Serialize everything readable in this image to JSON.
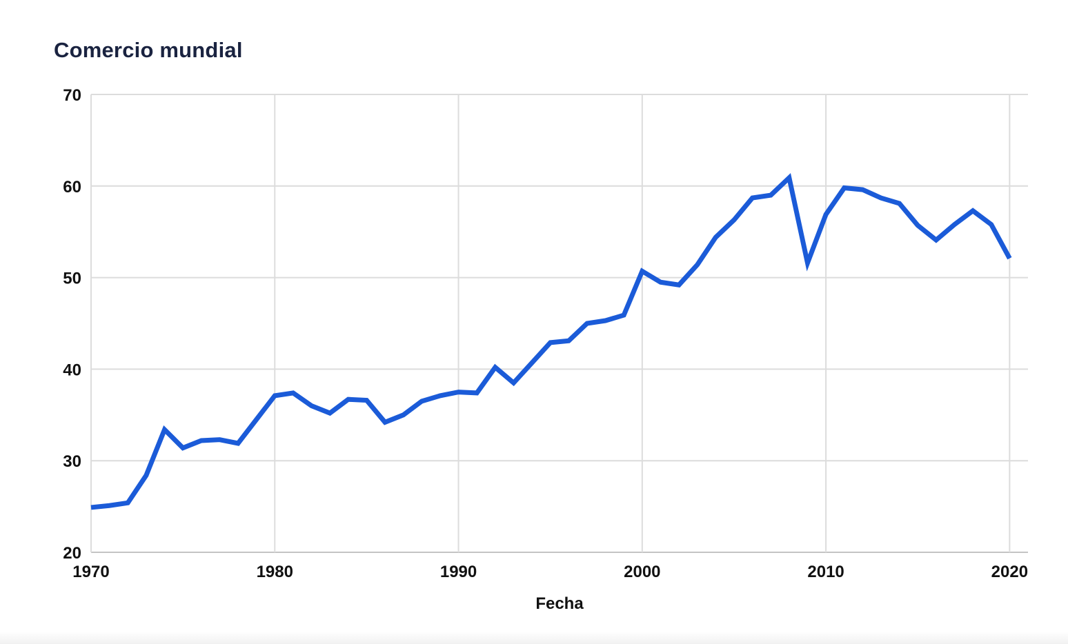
{
  "header": {
    "title": "Comercio mundial"
  },
  "chart_data": {
    "type": "line",
    "title": "Comercio mundial",
    "xlabel": "Fecha",
    "ylabel": "",
    "x": [
      1970,
      1971,
      1972,
      1973,
      1974,
      1975,
      1976,
      1977,
      1978,
      1979,
      1980,
      1981,
      1982,
      1983,
      1984,
      1985,
      1986,
      1987,
      1988,
      1989,
      1990,
      1991,
      1992,
      1993,
      1994,
      1995,
      1996,
      1997,
      1998,
      1999,
      2000,
      2001,
      2002,
      2003,
      2004,
      2005,
      2006,
      2007,
      2008,
      2009,
      2010,
      2011,
      2012,
      2013,
      2014,
      2015,
      2016,
      2017,
      2018,
      2019,
      2020
    ],
    "series": [
      {
        "name": "Comercio mundial",
        "color": "#1b5bd8",
        "values": [
          24.9,
          25.1,
          25.4,
          28.4,
          33.4,
          31.4,
          32.2,
          32.3,
          31.9,
          34.5,
          37.1,
          37.4,
          36.0,
          35.2,
          36.7,
          36.6,
          34.2,
          35.0,
          36.5,
          37.1,
          37.5,
          37.4,
          40.2,
          38.5,
          40.7,
          42.9,
          43.1,
          45.0,
          45.3,
          45.9,
          50.7,
          49.5,
          49.2,
          51.4,
          54.4,
          56.3,
          58.7,
          59.0,
          60.9,
          51.6,
          56.9,
          59.8,
          59.6,
          58.7,
          58.1,
          55.7,
          54.1,
          55.8,
          57.3,
          55.8,
          52.1
        ]
      }
    ],
    "xlim": [
      1970,
      2021
    ],
    "ylim": [
      20,
      70
    ],
    "xticks": [
      1970,
      1980,
      1990,
      2000,
      2010,
      2020
    ],
    "yticks": [
      20,
      30,
      40,
      50,
      60,
      70
    ],
    "grid": true,
    "legend_position": "none"
  },
  "colors": {
    "line": "#1b5bd8",
    "title_text": "#1a2340",
    "tick_text": "#111111",
    "gridline": "#dcdcdc",
    "axis_line": "#c4c4c4",
    "background": "#ffffff",
    "footer_band": "#f1f1f1"
  }
}
